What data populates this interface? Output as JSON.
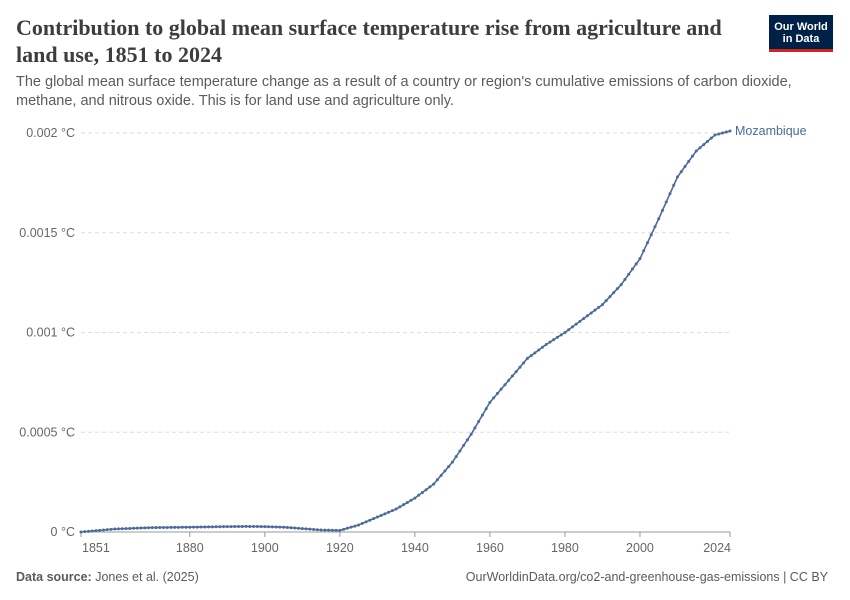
{
  "header": {
    "title": "Contribution to global mean surface temperature rise from agriculture and land use, 1851 to 2024",
    "subtitle": "The global mean surface temperature change as a result of a country or region's cumulative emissions of carbon dioxide, methane, and nitrous oxide. This is for land use and agriculture only."
  },
  "logo": {
    "line1": "Our World",
    "line2": "in Data",
    "bg_color": "#002147",
    "accent_color": "#ce261e"
  },
  "footer": {
    "source_label": "Data source:",
    "source_text": "Jones et al. (2025)",
    "right_text": "OurWorldinData.org/co2-and-greenhouse-gas-emissions | CC BY"
  },
  "chart_data": {
    "type": "line",
    "xlim": [
      1851,
      2024
    ],
    "ylim": [
      0,
      0.002
    ],
    "x_ticks": [
      1851,
      1880,
      1900,
      1920,
      1940,
      1960,
      1980,
      2000,
      2024
    ],
    "y_ticks": [
      {
        "value": 0,
        "label": "0 °C"
      },
      {
        "value": 0.0005,
        "label": "0.0005 °C"
      },
      {
        "value": 0.001,
        "label": "0.001 °C"
      },
      {
        "value": 0.0015,
        "label": "0.0015 °C"
      },
      {
        "value": 0.002,
        "label": "0.002 °C"
      }
    ],
    "grid": "horizontal dashed",
    "markers": true,
    "series": [
      {
        "name": "Mozambique",
        "color": "#4c6a9c",
        "points": [
          [
            1851,
            0
          ],
          [
            1860,
            1.5e-05
          ],
          [
            1870,
            2.2e-05
          ],
          [
            1880,
            2.4e-05
          ],
          [
            1890,
            2.7e-05
          ],
          [
            1895,
            2.8e-05
          ],
          [
            1900,
            2.7e-05
          ],
          [
            1905,
            2.4e-05
          ],
          [
            1910,
            1.7e-05
          ],
          [
            1915,
            1e-05
          ],
          [
            1920,
            8e-06
          ],
          [
            1925,
            3.5e-05
          ],
          [
            1930,
            7.5e-05
          ],
          [
            1935,
            0.000115
          ],
          [
            1940,
            0.00017
          ],
          [
            1945,
            0.00024
          ],
          [
            1950,
            0.00035
          ],
          [
            1955,
            0.00049
          ],
          [
            1960,
            0.00065
          ],
          [
            1965,
            0.00076
          ],
          [
            1970,
            0.00087
          ],
          [
            1975,
            0.00094
          ],
          [
            1980,
            0.001
          ],
          [
            1985,
            0.00107
          ],
          [
            1990,
            0.00114
          ],
          [
            1995,
            0.00124
          ],
          [
            2000,
            0.00137
          ],
          [
            2005,
            0.00157
          ],
          [
            2010,
            0.00178
          ],
          [
            2015,
            0.00191
          ],
          [
            2020,
            0.00199
          ],
          [
            2024,
            0.00201
          ]
        ]
      }
    ]
  }
}
